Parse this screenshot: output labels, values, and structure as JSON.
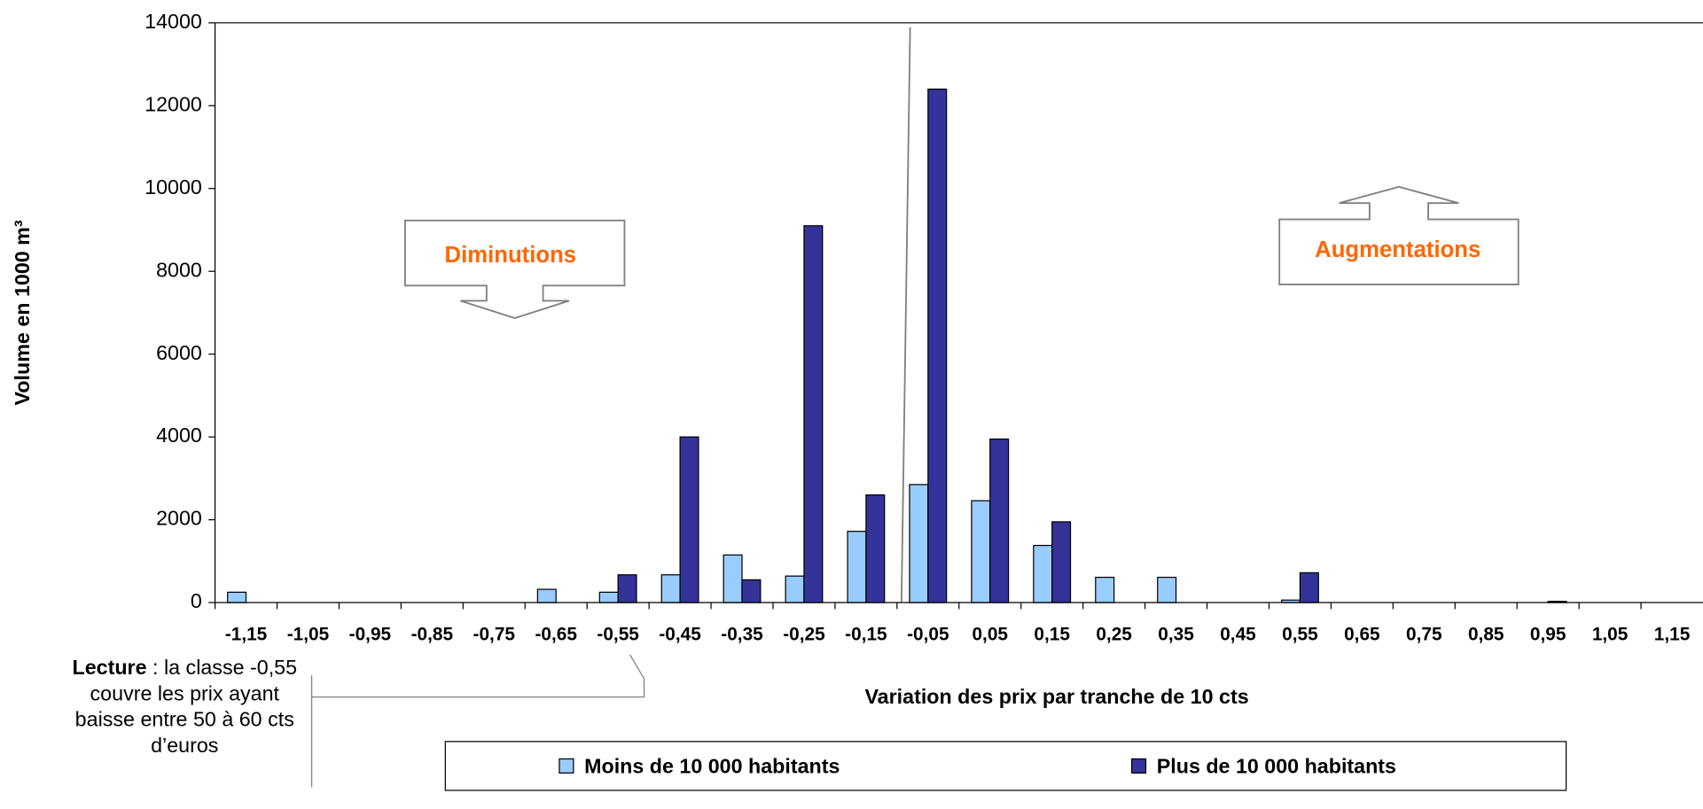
{
  "chart_data": {
    "type": "bar",
    "categories": [
      "-1,15",
      "-1,05",
      "-0,95",
      "-0,85",
      "-0,75",
      "-0,65",
      "-0,55",
      "-0,45",
      "-0,35",
      "-0,25",
      "-0,15",
      "-0,05",
      "0,05",
      "0,15",
      "0,25",
      "0,35",
      "0,45",
      "0,55",
      "0,65",
      "0,75",
      "0,85",
      "0,95",
      "1,05",
      "1,15"
    ],
    "series": [
      {
        "name": "Moins de 10 000 habitants",
        "color": "#99ccff",
        "values": [
          250,
          0,
          0,
          0,
          0,
          320,
          250,
          670,
          1150,
          640,
          1720,
          2850,
          2460,
          1380,
          610,
          610,
          0,
          60,
          0,
          0,
          0,
          0,
          0,
          0
        ]
      },
      {
        "name": "Plus de 10 000 habitants",
        "color": "#333399",
        "values": [
          0,
          0,
          0,
          0,
          0,
          0,
          670,
          4000,
          550,
          9100,
          2600,
          12400,
          3950,
          1950,
          0,
          0,
          0,
          720,
          0,
          0,
          0,
          30,
          0,
          0
        ]
      }
    ],
    "ylim": [
      0,
      14000
    ],
    "yticks": [
      0,
      2000,
      4000,
      6000,
      8000,
      10000,
      12000,
      14000
    ],
    "y_axis_label": "Volume en 1000 m³",
    "x_axis_label": "Variation des prix par tranche de 10 cts",
    "annotations": {
      "left": "Diminutions",
      "right": "Augmentations",
      "note_bold": "Lecture",
      "note_text": " : la classe -0,55 couvre les prix ayant baisse entre 50 à 60 cts d’euros"
    },
    "legend": "bottom"
  }
}
